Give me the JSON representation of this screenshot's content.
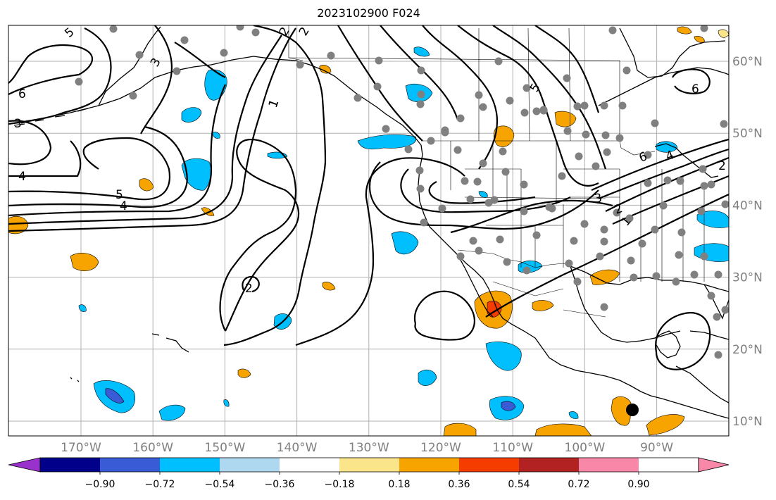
{
  "title": "2023102900 F024",
  "map": {
    "lon_labels": [
      "170°W",
      "160°W",
      "150°W",
      "140°W",
      "130°W",
      "120°W",
      "110°W",
      "100°W",
      "90°W"
    ],
    "lat_labels": [
      "60°N",
      "50°N",
      "40°N",
      "30°N",
      "20°N",
      "10°N"
    ]
  },
  "contour_labels": [
    "5",
    "6",
    "3",
    "3",
    "4",
    "5",
    "4",
    "2",
    "2",
    "2",
    "1",
    "1",
    "5",
    "6",
    "6",
    "4",
    "3",
    "2",
    "1",
    "2"
  ],
  "colorbar": {
    "ticks": [
      "−0.90",
      "−0.72",
      "−0.54",
      "−0.36",
      "−0.18",
      "0.18",
      "0.36",
      "0.54",
      "0.72",
      "0.90"
    ],
    "colors": [
      "#9932cc",
      "#00008b",
      "#3a5bd6",
      "#00bfff",
      "#add8f0",
      "#ffffff",
      "#fbe58a",
      "#f7a300",
      "#f53d00",
      "#b22222",
      "#f988a8"
    ]
  }
}
